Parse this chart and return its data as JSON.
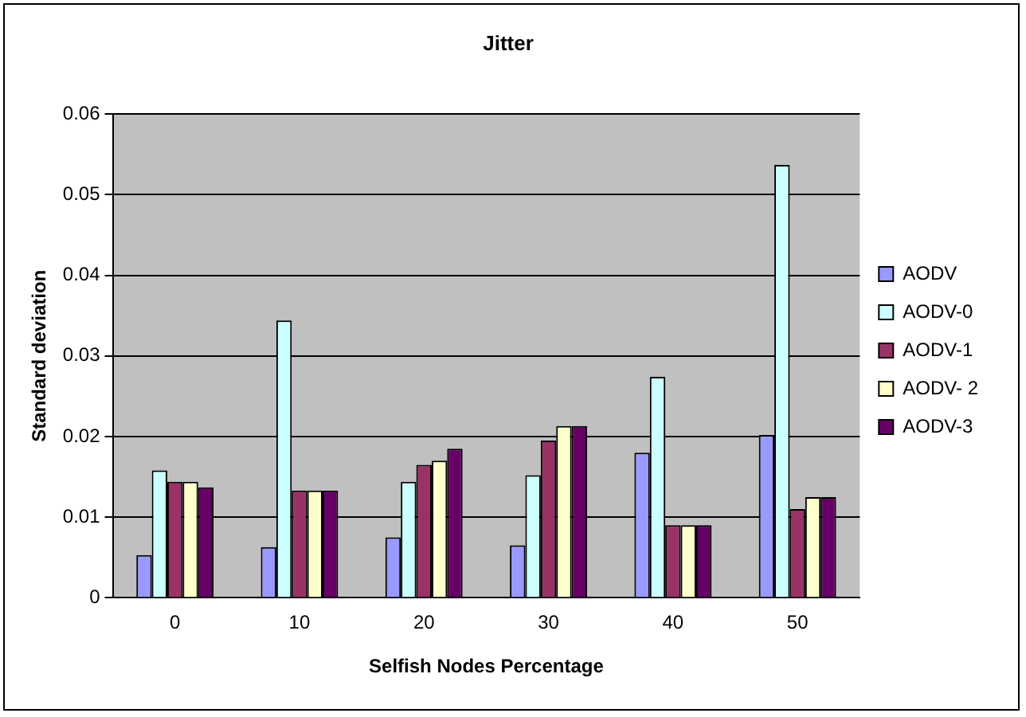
{
  "chart_data": {
    "type": "bar",
    "title": "Jitter",
    "xlabel": "Selfish Nodes Percentage",
    "ylabel": "Standard deviation",
    "categories": [
      "0",
      "10",
      "20",
      "30",
      "40",
      "50"
    ],
    "series": [
      {
        "name": "AODV",
        "color": "#9999ff",
        "values": [
          0.0053,
          0.0063,
          0.0075,
          0.0065,
          0.018,
          0.0202
        ]
      },
      {
        "name": "AODV-0",
        "color": "#ccffff",
        "values": [
          0.0158,
          0.0344,
          0.0144,
          0.0152,
          0.0274,
          0.0537
        ]
      },
      {
        "name": "AODV-1",
        "color": "#993366",
        "values": [
          0.0144,
          0.0133,
          0.0165,
          0.0195,
          0.009,
          0.011
        ]
      },
      {
        "name": "AODV- 2",
        "color": "#ffffcc",
        "values": [
          0.0144,
          0.0133,
          0.017,
          0.0213,
          0.009,
          0.0125
        ]
      },
      {
        "name": "AODV-3",
        "color": "#660066",
        "values": [
          0.0137,
          0.0133,
          0.0185,
          0.0213,
          0.009,
          0.0125
        ]
      }
    ],
    "ylim": [
      0,
      0.06
    ],
    "yticks": [
      0,
      0.01,
      0.02,
      0.03,
      0.04,
      0.05,
      0.06
    ],
    "grid": "y",
    "legend": "right"
  }
}
